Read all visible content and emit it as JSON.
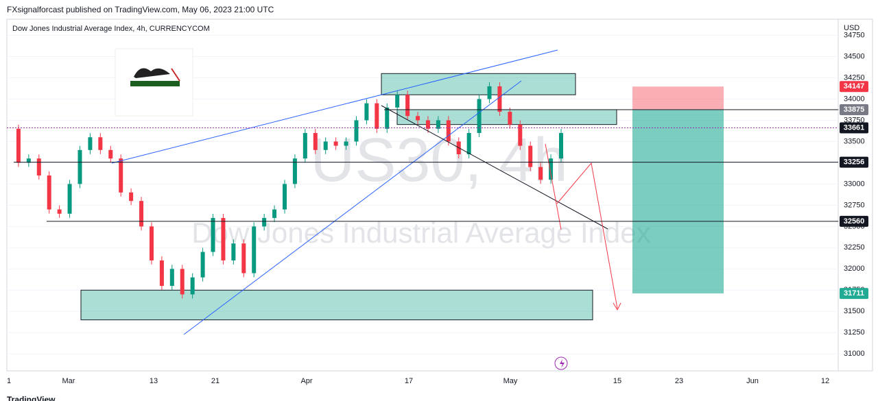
{
  "header": "FXsignalforcast published on TradingView.com, May 06, 2023 21:00 UTC",
  "footer": "TradingView",
  "chart_data": {
    "type": "candlestick",
    "title": "Dow Jones Industrial Average Index, 4h, CURRENCYCOM",
    "currency": "USD",
    "watermark": "US30, 4h",
    "watermark_subtitle": "Dow Jones Industrial Average Index",
    "x_labels": [
      "1",
      "Mar",
      "13",
      "21",
      "Apr",
      "17",
      "May",
      "15",
      "23",
      "Jun",
      "12"
    ],
    "closes": [
      33650,
      33250,
      33300,
      33100,
      32700,
      32650,
      33000,
      33400,
      33550,
      33400,
      33300,
      32900,
      32800,
      32500,
      32100,
      31800,
      32000,
      31700,
      31900,
      32200,
      32600,
      32100,
      32300,
      31950,
      32500,
      32600,
      32700,
      33000,
      33300,
      33600,
      33400,
      33500,
      33450,
      33500,
      33750,
      33950,
      33650,
      33900,
      34050,
      33800,
      33750,
      33650,
      33750,
      33500,
      33350,
      33600,
      34000,
      34150,
      33850,
      33700,
      33450,
      33200,
      33050,
      33300,
      33600
    ],
    "up_color": "#089981",
    "down_color": "#f23645",
    "ylim": [
      30800,
      34940
    ],
    "yticks": [
      31000,
      31250,
      31500,
      31750,
      32000,
      32250,
      32500,
      32750,
      33000,
      33250,
      33500,
      33750,
      34000,
      34250,
      34500,
      34750
    ],
    "price_labels": [
      {
        "value": 34147,
        "color": "#f23645",
        "line": "none"
      },
      {
        "value": 33875,
        "color": "#787b86",
        "line": "solid"
      },
      {
        "value": 33661,
        "color": "#131722",
        "line": "dotted"
      },
      {
        "value": 33256,
        "color": "#131722",
        "line": "solid"
      },
      {
        "value": 32560,
        "color": "#131722",
        "line": "solid"
      },
      {
        "value": 31711,
        "color": "#22ab94",
        "line": "none"
      }
    ],
    "zones": [
      {
        "top": 34300,
        "bottom": 34050
      },
      {
        "top": 33875,
        "bottom": 33700
      },
      {
        "top": 31750,
        "bottom": 31400
      }
    ]
  }
}
